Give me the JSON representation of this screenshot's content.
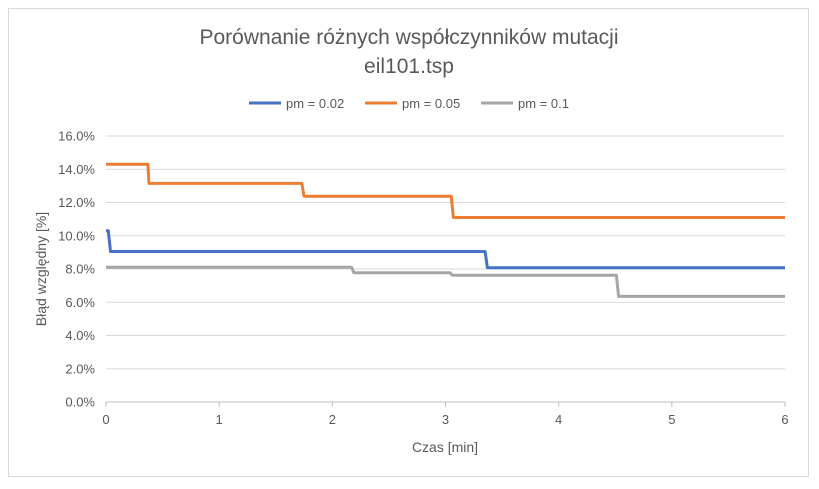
{
  "chart_data": {
    "type": "line",
    "title": "Porównanie różnych współczynników mutacji",
    "subtitle": "eil101.tsp",
    "xlabel": "Czas [min]",
    "ylabel": "Błąd względny [%]",
    "xlim": [
      0,
      6
    ],
    "ylim": [
      0,
      0.16
    ],
    "x_ticks": [
      "0",
      "1",
      "2",
      "3",
      "4",
      "5",
      "6"
    ],
    "y_ticks": [
      "0.0%",
      "2.0%",
      "4.0%",
      "6.0%",
      "8.0%",
      "10.0%",
      "12.0%",
      "14.0%",
      "16.0%"
    ],
    "grid": "horizontal",
    "legend": "top",
    "series": [
      {
        "name": "pm = 0.02",
        "color": "#4472c4",
        "x": [
          0,
          0.02,
          0.04,
          3.35,
          3.37,
          6
        ],
        "y": [
          0.103,
          0.103,
          0.0905,
          0.0905,
          0.0808,
          0.0808
        ]
      },
      {
        "name": "pm = 0.05",
        "color": "#ed7d31",
        "x": [
          0,
          0.37,
          0.38,
          1.73,
          1.75,
          3.05,
          3.07,
          6
        ],
        "y": [
          0.143,
          0.143,
          0.1315,
          0.1315,
          0.1238,
          0.1238,
          0.111,
          0.111
        ]
      },
      {
        "name": "pm = 0.1",
        "color": "#a5a5a5",
        "x": [
          0,
          2.17,
          2.19,
          3.04,
          3.06,
          4.51,
          4.53,
          6
        ],
        "y": [
          0.081,
          0.081,
          0.0778,
          0.0778,
          0.0762,
          0.0762,
          0.0635,
          0.0635
        ]
      }
    ]
  }
}
